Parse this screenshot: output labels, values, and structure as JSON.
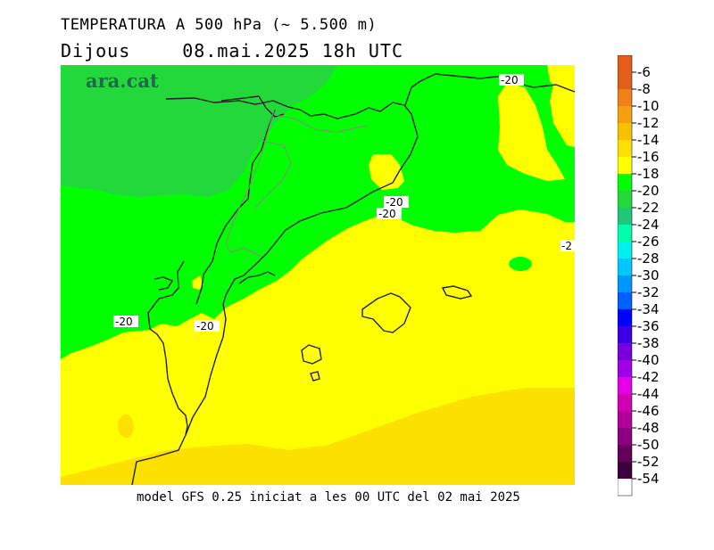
{
  "header": {
    "title": "TEMPERATURA A 500 hPa (~ 5.500 m)",
    "day": "Dijous",
    "datetime": "08.mai.2025 18h UTC"
  },
  "map": {
    "logo": "ara.cat",
    "contour_labels": [
      "-20",
      "-20",
      "-20",
      "-20",
      "-20",
      "-2"
    ]
  },
  "legend": {
    "ticks": [
      "-6",
      "-8",
      "-10",
      "-12",
      "-14",
      "-16",
      "-18",
      "-20",
      "-22",
      "-24",
      "-26",
      "-28",
      "-30",
      "-32",
      "-34",
      "-36",
      "-38",
      "-40",
      "-42",
      "-44",
      "-46",
      "-48",
      "-50",
      "-52",
      "-54"
    ],
    "colors": [
      "#e0601a",
      "#f08018",
      "#f5a010",
      "#f8c000",
      "#fce000",
      "#ffff00",
      "#00ff00",
      "#22d83a",
      "#1ec878",
      "#00ffaa",
      "#00f0f0",
      "#00c8ff",
      "#0096ff",
      "#0060ff",
      "#0000ff",
      "#3c00e6",
      "#7800dc",
      "#a000e6",
      "#e600e6",
      "#d200b4",
      "#b4009b",
      "#8c0082",
      "#64005a",
      "#3c003c"
    ]
  },
  "footer": {
    "text": "model GFS 0.25 iniciat a les 00 UTC del 02 mai 2025"
  }
}
